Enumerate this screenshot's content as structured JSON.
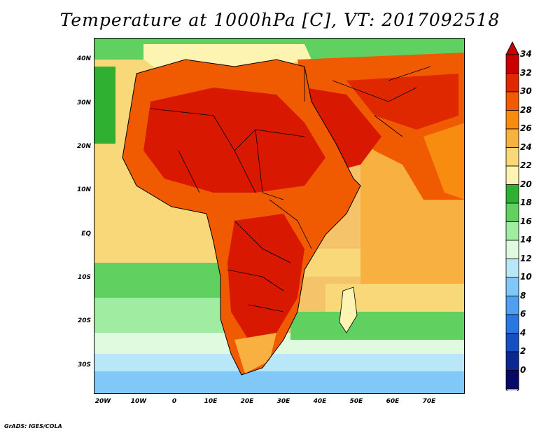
{
  "title": "Temperature at 1000hPa [C], VT: 2017092518",
  "credit": "GrADS: IGES/COLA",
  "lat_labels": [
    "40N",
    "30N",
    "20N",
    "10N",
    "EQ",
    "10S",
    "20S",
    "30S"
  ],
  "lon_labels": [
    "20W",
    "10W",
    "0",
    "10E",
    "20E",
    "30E",
    "40E",
    "50E",
    "60E",
    "70E"
  ],
  "colorbar": {
    "labels": [
      "34",
      "32",
      "30",
      "28",
      "26",
      "24",
      "22",
      "20",
      "18",
      "16",
      "14",
      "12",
      "10",
      "8",
      "6",
      "4",
      "2",
      "0"
    ],
    "colors": [
      "#c80000",
      "#e02800",
      "#f05a00",
      "#f88c10",
      "#f8b040",
      "#f8d878",
      "#fcf4b0",
      "#30b030",
      "#60d060",
      "#a0eca0",
      "#e0fae0",
      "#b8e8f8",
      "#80c8f8",
      "#50a0f0",
      "#2878e0",
      "#1450c0",
      "#0a2890",
      "#06086a"
    ]
  },
  "map": {
    "colors": {
      "ocean_cool": "#80c8f8",
      "ocean_mid": "#a0eca0",
      "ocean_warm": "#f8d878",
      "land_hot": "#d81800",
      "land_warm": "#f06000",
      "border": "#000000"
    }
  }
}
